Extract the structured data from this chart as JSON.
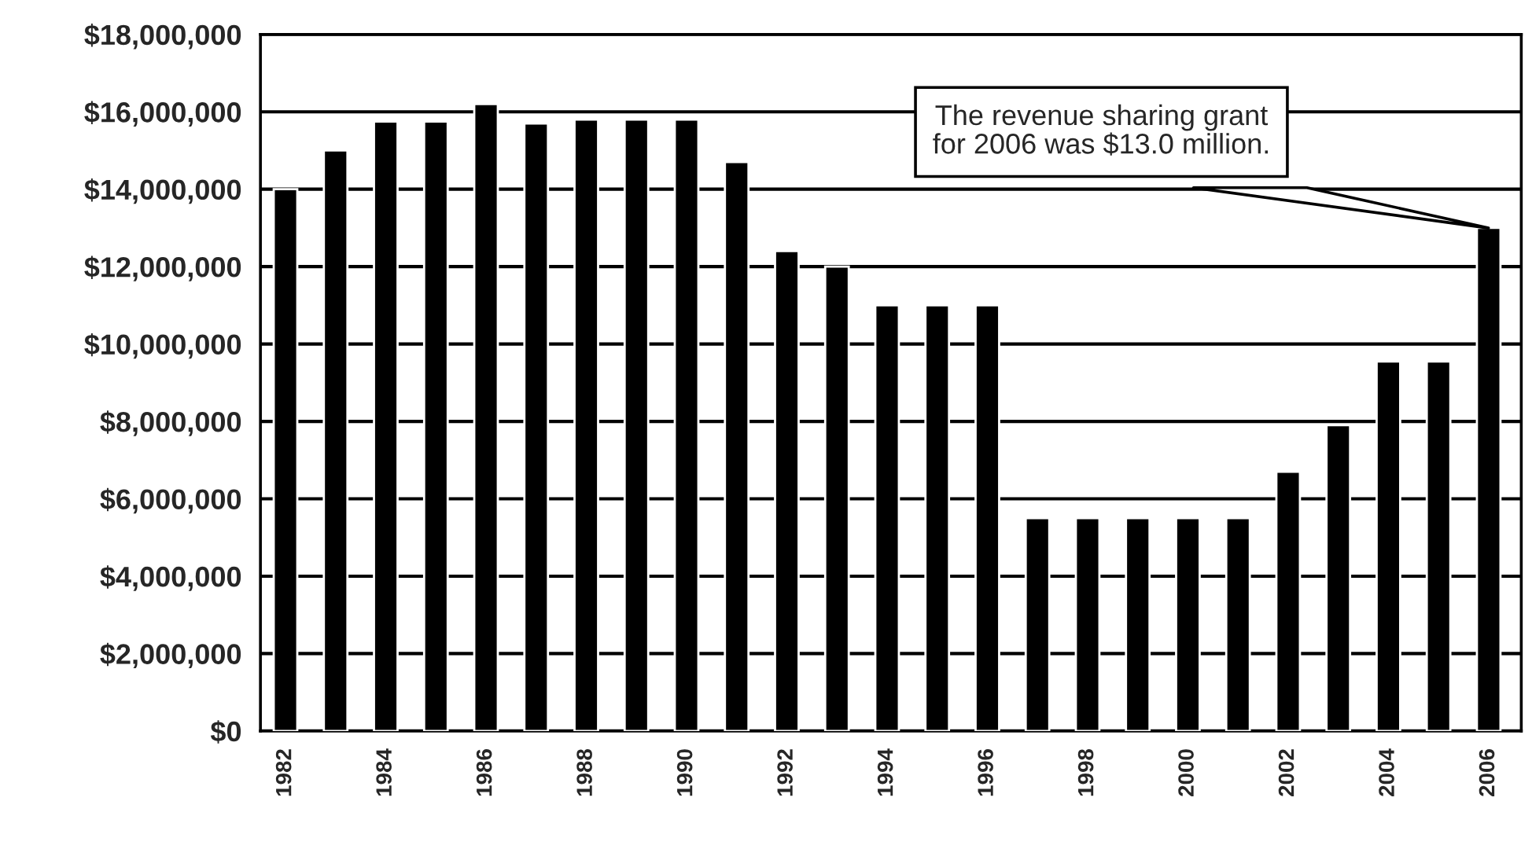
{
  "chart_data": {
    "type": "bar",
    "categories": [
      "1982",
      null,
      "1984",
      null,
      "1986",
      null,
      "1988",
      null,
      "1990",
      null,
      "1992",
      null,
      "1994",
      null,
      "1996",
      null,
      "1998",
      null,
      "2000",
      null,
      "2002",
      null,
      "2004",
      null,
      "2006"
    ],
    "values": [
      14000000,
      15000000,
      15750000,
      15750000,
      16200000,
      15700000,
      15800000,
      15800000,
      15800000,
      14700000,
      12400000,
      12000000,
      11000000,
      11000000,
      11000000,
      5500000,
      5500000,
      5500000,
      5500000,
      5500000,
      6700000,
      7900000,
      9550000,
      9550000,
      13000000
    ],
    "color": "#000000",
    "ylim": [
      0,
      18000000
    ],
    "yticks": [
      {
        "value": 0,
        "label": "$0"
      },
      {
        "value": 2000000,
        "label": "$2,000,000"
      },
      {
        "value": 4000000,
        "label": "$4,000,000"
      },
      {
        "value": 6000000,
        "label": "$6,000,000"
      },
      {
        "value": 8000000,
        "label": "$8,000,000"
      },
      {
        "value": 10000000,
        "label": "$10,000,000"
      },
      {
        "value": 12000000,
        "label": "$12,000,000"
      },
      {
        "value": 14000000,
        "label": "$14,000,000"
      },
      {
        "value": 16000000,
        "label": "$16,000,000"
      },
      {
        "value": 18000000,
        "label": "$18,000,000"
      }
    ],
    "grid": "y",
    "annotations": [
      "The revenue sharing grant\nfor 2006 was $13.0 million."
    ]
  }
}
